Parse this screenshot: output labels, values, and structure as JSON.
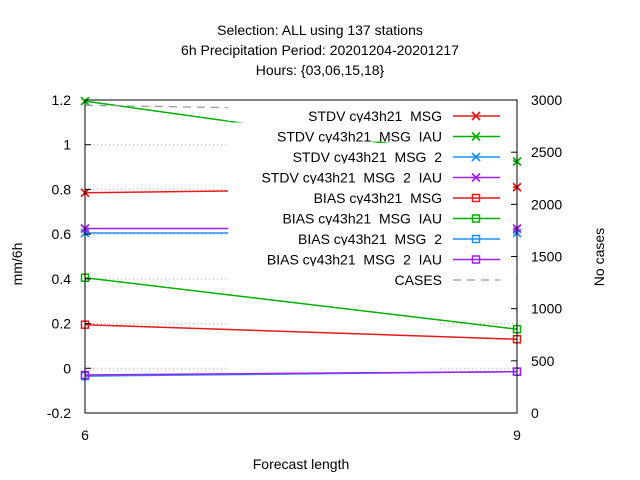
{
  "chart_data": {
    "type": "line",
    "title_lines": [
      "Selection: ALL using   137 stations",
      "6h Precipitation    Period: 20201204-20201217",
      "Hours: {03,06,15,18}"
    ],
    "xlabel": "Forecast length",
    "ylabel": "mm/6h",
    "y2label": "No cases",
    "x": [
      6,
      9
    ],
    "xlim": [
      6,
      9
    ],
    "ylim": [
      -0.2,
      1.2
    ],
    "y2lim": [
      0,
      3000
    ],
    "x_ticks": [
      "6",
      "9"
    ],
    "y_ticks": [
      "-0.2",
      "0",
      "0.2",
      "0.4",
      "0.6",
      "0.8",
      "1",
      "1.2"
    ],
    "y2_ticks": [
      "0",
      "500",
      "1000",
      "1500",
      "2000",
      "2500",
      "3000"
    ],
    "grid": true,
    "legend_position": "top-right",
    "series": [
      {
        "name": "STDV cy43h21_MSG",
        "values": [
          0.785,
          0.81
        ],
        "color": "#e41a1c",
        "marker": "x",
        "axis": "y"
      },
      {
        "name": "STDV cy43h21_MSG_IAU",
        "values": [
          1.195,
          0.925
        ],
        "color": "#00b000",
        "marker": "x",
        "axis": "y"
      },
      {
        "name": "STDV cy43h21_MSG_2",
        "values": [
          0.605,
          0.605
        ],
        "color": "#1e90ff",
        "marker": "x",
        "axis": "y"
      },
      {
        "name": "STDV cy43h21_MSG_2_IAU",
        "values": [
          0.625,
          0.625
        ],
        "color": "#a020f0",
        "marker": "x",
        "axis": "y"
      },
      {
        "name": "BIAS cy43h21_MSG",
        "values": [
          0.195,
          0.13
        ],
        "color": "#e41a1c",
        "marker": "square",
        "axis": "y"
      },
      {
        "name": "BIAS cy43h21_MSG_IAU",
        "values": [
          0.405,
          0.175
        ],
        "color": "#00b000",
        "marker": "square",
        "axis": "y"
      },
      {
        "name": "BIAS cy43h21_MSG_2",
        "values": [
          -0.035,
          -0.015
        ],
        "color": "#1e90ff",
        "marker": "square",
        "axis": "y"
      },
      {
        "name": "BIAS cy43h21_MSG_2_IAU",
        "values": [
          -0.03,
          -0.015
        ],
        "color": "#a020f0",
        "marker": "square",
        "axis": "y"
      },
      {
        "name": "CASES",
        "values": [
          2950,
          2880
        ],
        "color": "#999999",
        "marker": "none",
        "dash": true,
        "axis": "y2"
      }
    ]
  }
}
